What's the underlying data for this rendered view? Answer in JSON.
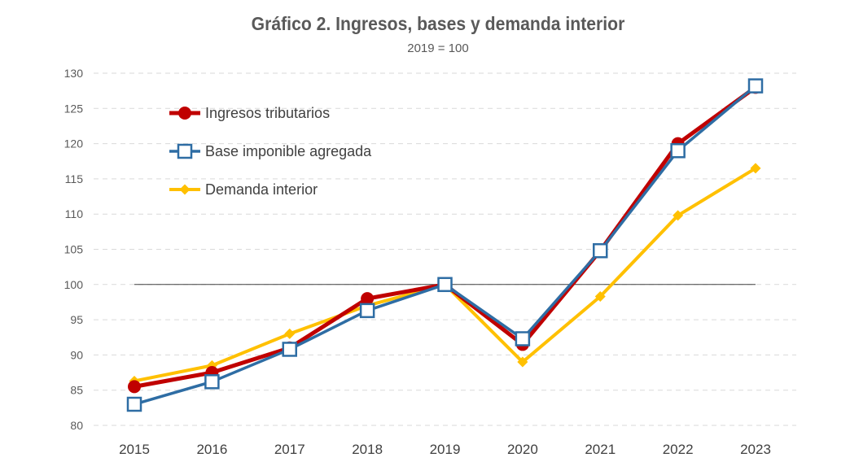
{
  "chart_data": {
    "type": "line",
    "title": "Gráfico 2. Ingresos, bases y demanda interior",
    "subtitle": "2019 = 100",
    "xlabel": "",
    "ylabel": "",
    "x": [
      "2015",
      "2016",
      "2017",
      "2018",
      "2019",
      "2020",
      "2021",
      "2022",
      "2023"
    ],
    "ylim": [
      80,
      130
    ],
    "yticks": [
      80,
      85,
      90,
      95,
      100,
      105,
      110,
      115,
      120,
      125,
      130
    ],
    "reference_line": 100,
    "grid": true,
    "legend_position": "top-left",
    "series": [
      {
        "name": "Ingresos tributarios",
        "color": "#C00000",
        "marker": "circle",
        "values": [
          85.5,
          87.5,
          91.0,
          98.0,
          100.0,
          91.5,
          104.8,
          120.0,
          128.0
        ]
      },
      {
        "name": "Base imponible agregada",
        "color": "#2E6DA4",
        "marker": "square",
        "values": [
          83.0,
          86.2,
          90.8,
          96.3,
          100.0,
          92.3,
          104.8,
          119.0,
          128.2
        ]
      },
      {
        "name": "Demanda interior",
        "color": "#FFC000",
        "marker": "diamond",
        "values": [
          86.3,
          88.5,
          93.0,
          97.0,
          100.0,
          89.0,
          98.3,
          109.8,
          116.5
        ]
      }
    ]
  }
}
